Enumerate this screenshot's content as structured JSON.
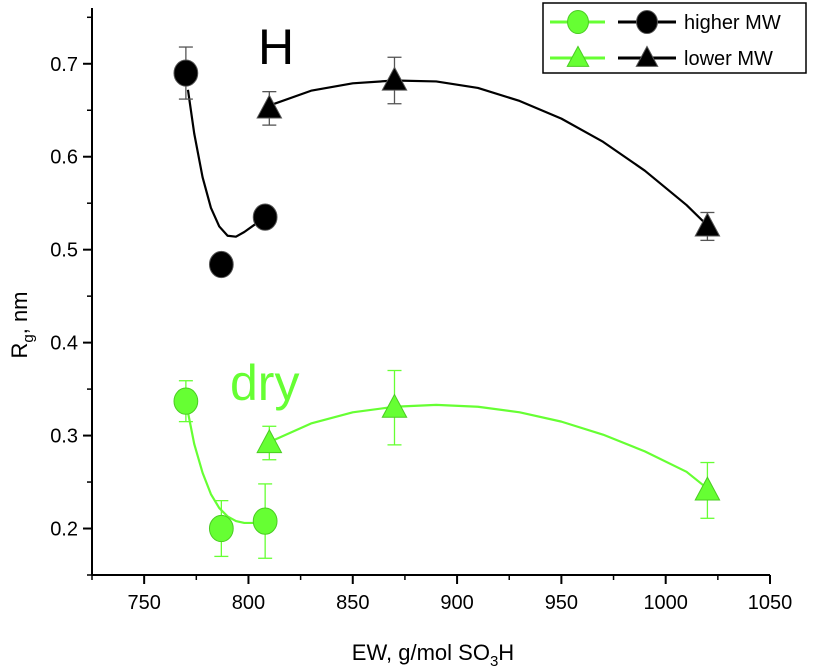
{
  "chart_data": {
    "type": "scatter",
    "title": "",
    "xlabel": {
      "main": "EW, g/mol SO",
      "sub": "3",
      "tail": "H"
    },
    "ylabel": {
      "main": "R",
      "sub": "g",
      "tail": ", nm"
    },
    "xlim": [
      725,
      1050
    ],
    "ylim": [
      0.15,
      0.76
    ],
    "xticks": [
      750,
      800,
      850,
      900,
      950,
      1000,
      1050
    ],
    "xtick_labels": [
      "750",
      "800",
      "850",
      "900",
      "950",
      "1000",
      "1050"
    ],
    "yticks": [
      0.2,
      0.3,
      0.4,
      0.5,
      0.6,
      0.7
    ],
    "ytick_labels": [
      "0.2",
      "0.3",
      "0.4",
      "0.5",
      "0.6",
      "0.7"
    ],
    "grid": false,
    "legend_position": "top-right",
    "legend": [
      {
        "label": "higher MW",
        "markers": [
          "circle",
          "circle"
        ],
        "colors": [
          "#66ff33",
          "#000000"
        ]
      },
      {
        "label": "lower MW",
        "markers": [
          "triangle",
          "triangle"
        ],
        "colors": [
          "#66ff33",
          "#000000"
        ]
      }
    ],
    "annotations": [
      {
        "text": "H",
        "color": "#000000"
      },
      {
        "text": "dry",
        "color": "#66ff33"
      }
    ],
    "series": [
      {
        "name": "higher MW",
        "group": "H",
        "marker": "circle",
        "color": "#000000",
        "x": [
          770,
          787,
          808
        ],
        "y": [
          0.69,
          0.484,
          0.535
        ],
        "err": [
          0.028,
          0,
          0
        ]
      },
      {
        "name": "lower MW",
        "group": "H",
        "marker": "triangle",
        "color": "#000000",
        "x": [
          810,
          870,
          1020
        ],
        "y": [
          0.652,
          0.682,
          0.525
        ],
        "err": [
          0.018,
          0.025,
          0.015
        ]
      },
      {
        "name": "higher MW",
        "group": "dry",
        "marker": "circle",
        "color": "#66ff33",
        "x": [
          770,
          787,
          808
        ],
        "y": [
          0.337,
          0.2,
          0.208
        ],
        "err": [
          0.022,
          0.03,
          0.04
        ]
      },
      {
        "name": "lower MW",
        "group": "dry",
        "marker": "triangle",
        "color": "#66ff33",
        "x": [
          810,
          870,
          1020
        ],
        "y": [
          0.292,
          0.33,
          0.241
        ],
        "err": [
          0.018,
          0.04,
          0.03
        ]
      }
    ],
    "fit_curves": [
      {
        "group": "H",
        "color": "#000000",
        "x": [
          771,
          774,
          778,
          782,
          786,
          790,
          794,
          798,
          803,
          807
        ],
        "y": [
          0.672,
          0.625,
          0.578,
          0.545,
          0.525,
          0.515,
          0.514,
          0.519,
          0.527,
          0.533
        ]
      },
      {
        "group": "H",
        "color": "#000000",
        "x": [
          810,
          830,
          850,
          870,
          890,
          910,
          930,
          950,
          970,
          990,
          1010,
          1020
        ],
        "y": [
          0.655,
          0.671,
          0.679,
          0.682,
          0.681,
          0.674,
          0.66,
          0.641,
          0.616,
          0.585,
          0.548,
          0.526
        ]
      },
      {
        "group": "dry",
        "color": "#66ff33",
        "x": [
          771,
          774,
          778,
          782,
          786,
          790,
          794,
          798,
          803,
          807
        ],
        "y": [
          0.325,
          0.291,
          0.26,
          0.237,
          0.222,
          0.213,
          0.208,
          0.206,
          0.206,
          0.207
        ]
      },
      {
        "group": "dry",
        "color": "#66ff33",
        "x": [
          810,
          830,
          850,
          870,
          890,
          910,
          930,
          950,
          970,
          990,
          1010,
          1020
        ],
        "y": [
          0.293,
          0.313,
          0.325,
          0.331,
          0.333,
          0.331,
          0.325,
          0.315,
          0.301,
          0.283,
          0.261,
          0.243
        ]
      }
    ]
  }
}
